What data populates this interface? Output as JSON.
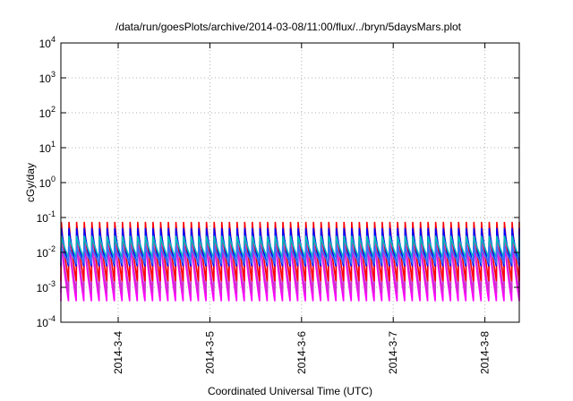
{
  "chart_data": {
    "type": "line",
    "title": "/data/run/goesPlots/archive/2014-03-08/11:00/flux/../bryn/5daysMars.plot",
    "xlabel": "Coordinated Universal Time (UTC)",
    "ylabel": "cGy/day",
    "y_scale": "log",
    "ylim": [
      0.0001,
      10000
    ],
    "y_ticks": [
      {
        "value": 0.0001,
        "base": "10",
        "exp": "-4"
      },
      {
        "value": 0.001,
        "base": "10",
        "exp": "-3"
      },
      {
        "value": 0.01,
        "base": "10",
        "exp": "-2"
      },
      {
        "value": 0.1,
        "base": "10",
        "exp": "-1"
      },
      {
        "value": 1,
        "base": "10",
        "exp": "0"
      },
      {
        "value": 10,
        "base": "10",
        "exp": "1"
      },
      {
        "value": 100,
        "base": "10",
        "exp": "2"
      },
      {
        "value": 1000,
        "base": "10",
        "exp": "3"
      },
      {
        "value": 10000,
        "base": "10",
        "exp": "4"
      }
    ],
    "xlim": [
      "2014-03-03 09:00",
      "2014-03-08 09:00"
    ],
    "x_ticks": [
      "2014-3-4",
      "2014-3-5",
      "2014-3-6",
      "2014-3-7",
      "2014-3-8"
    ],
    "x_tick_values": [
      "2014-03-04 00:00",
      "2014-03-05 00:00",
      "2014-03-06 00:00",
      "2014-03-07 00:00",
      "2014-03-08 00:00"
    ],
    "grid": true,
    "legend": "none",
    "cycles_per_day": 12,
    "series": [
      {
        "color": "#ff00ff",
        "peak": 0.022,
        "trough": 0.0004
      },
      {
        "color": "#cc33cc",
        "peak": 0.03,
        "trough": 0.0007
      },
      {
        "color": "#ff0000",
        "peak": 0.075,
        "trough": 0.0015
      },
      {
        "color": "#0000ff",
        "peak": 0.05,
        "trough": 0.004
      },
      {
        "color": "#00bbbb",
        "peak": 0.03,
        "trough": 0.007
      },
      {
        "color": "#3377ff",
        "peak": 0.015,
        "trough": 0.005
      }
    ]
  }
}
